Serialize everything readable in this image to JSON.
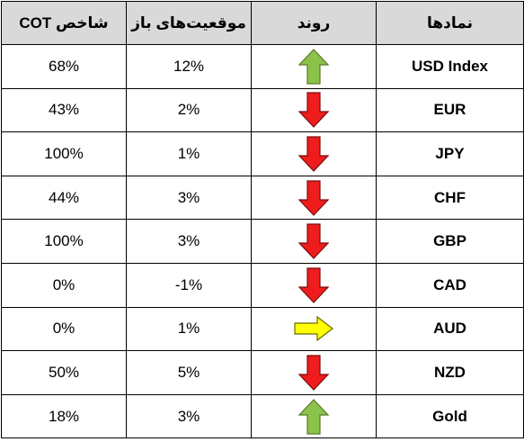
{
  "headers": {
    "cot": "شاخص COT",
    "positions": "موقعیت‌های باز",
    "trend": "روند",
    "symbols": "نمادها"
  },
  "colors": {
    "header_bg": "#d9d9d9",
    "up": "#8bc34a",
    "down": "#ee1c1c",
    "flat": "#ffff00"
  },
  "rows": [
    {
      "symbol": "USD Index",
      "trend": "up",
      "trend_icon": "green-up-arrow-icon",
      "positions": "12%",
      "cot": "68%"
    },
    {
      "symbol": "EUR",
      "trend": "down",
      "trend_icon": "red-down-arrow-icon",
      "positions": "2%",
      "cot": "43%"
    },
    {
      "symbol": "JPY",
      "trend": "down",
      "trend_icon": "red-down-arrow-icon",
      "positions": "1%",
      "cot": "100%"
    },
    {
      "symbol": "CHF",
      "trend": "down",
      "trend_icon": "red-down-arrow-icon",
      "positions": "3%",
      "cot": "44%"
    },
    {
      "symbol": "GBP",
      "trend": "down",
      "trend_icon": "red-down-arrow-icon",
      "positions": "3%",
      "cot": "100%"
    },
    {
      "symbol": "CAD",
      "trend": "down",
      "trend_icon": "red-down-arrow-icon",
      "positions": "-1%",
      "cot": "0%"
    },
    {
      "symbol": "AUD",
      "trend": "flat",
      "trend_icon": "yellow-right-arrow-icon",
      "positions": "1%",
      "cot": "0%"
    },
    {
      "symbol": "NZD",
      "trend": "down",
      "trend_icon": "red-down-arrow-icon",
      "positions": "5%",
      "cot": "50%"
    },
    {
      "symbol": "Gold",
      "trend": "up",
      "trend_icon": "green-up-arrow-icon",
      "positions": "3%",
      "cot": "18%"
    }
  ]
}
